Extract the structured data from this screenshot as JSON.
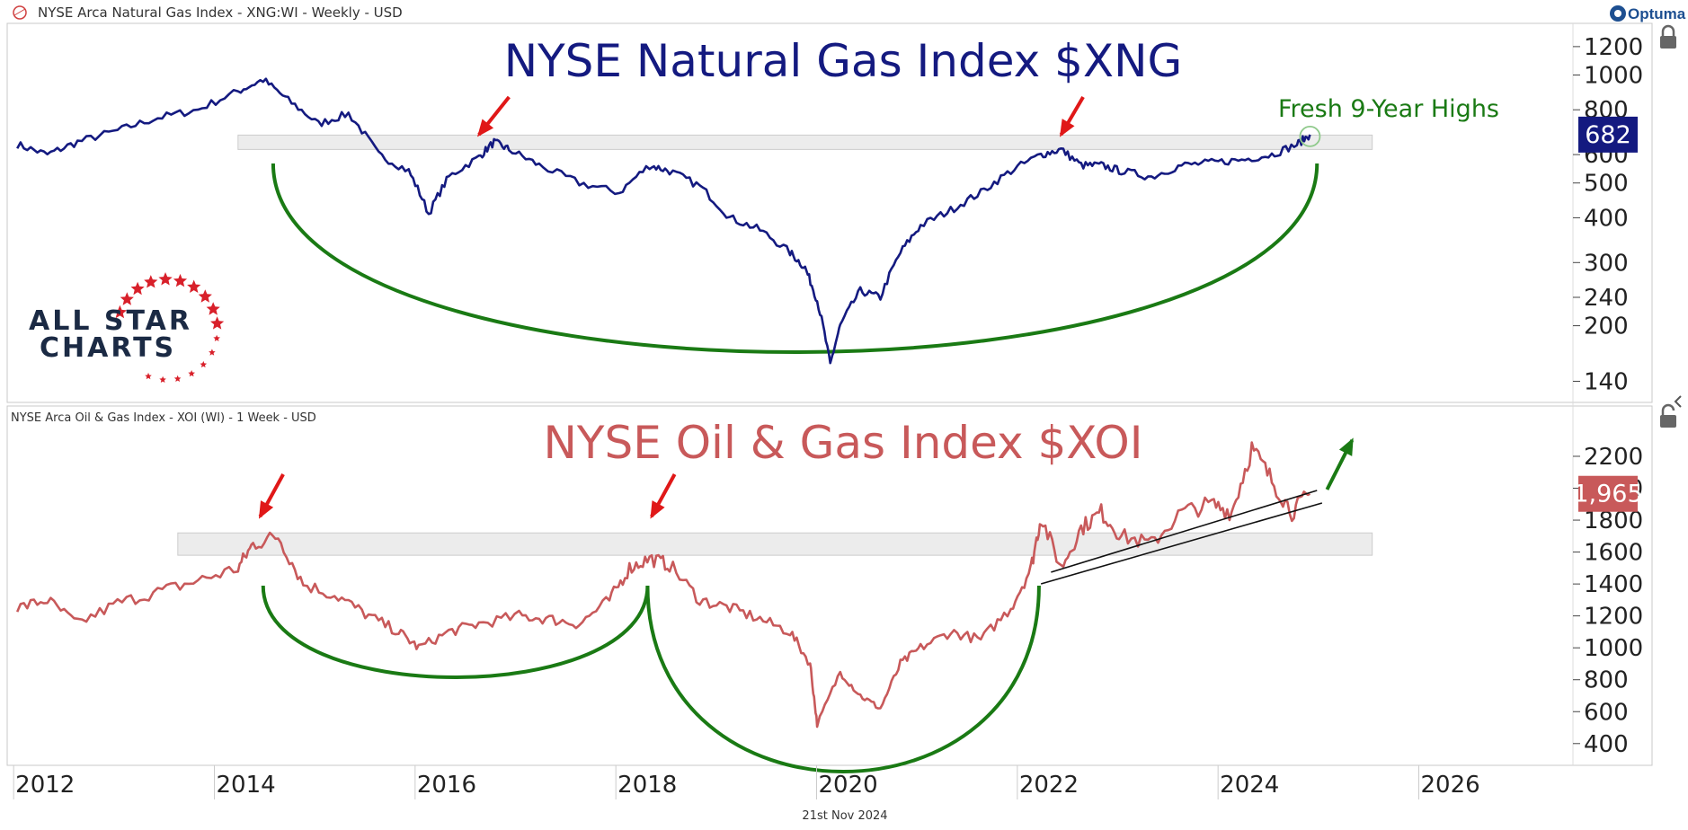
{
  "app": {
    "top_header": "NYSE Arca Natural Gas Index - XNG:WI - Weekly - USD",
    "brand": "Optuma",
    "footer_date": "21st Nov 2024",
    "logo_line1": "ALL STAR",
    "logo_line2": "CHARTS"
  },
  "colors": {
    "xng_line": "#141a80",
    "xoi_line": "#c8595a",
    "arc_green": "#1a7a14",
    "arrow_red": "#e01818",
    "arrow_green": "#1a7a14",
    "band_fill": "#e6e6e6",
    "xng_tag": "#141a80",
    "xoi_tag": "#c8595a",
    "star_red": "#d8202a"
  },
  "chart_data": [
    {
      "type": "line",
      "title": "NYSE Natural Gas Index $XNG",
      "header": "NYSE Arca Natural Gas Index - XNG:WI - Weekly - USD",
      "scale": "log",
      "ylim": [
        128,
        1300
      ],
      "yticks": [
        140,
        200,
        240,
        300,
        400,
        500,
        600,
        800,
        1000,
        1200
      ],
      "ytick_labels": [
        "140",
        "200",
        "240",
        "300",
        "400",
        "500",
        "600",
        "800",
        "1000",
        "1200"
      ],
      "last_value": 682,
      "last_value_label": "682",
      "annotation": "Fresh 9-Year Highs",
      "resistance_band": [
        620,
        680
      ],
      "series": [
        {
          "x": [
            2012.0,
            2012.3,
            2012.6,
            2013.0,
            2013.4,
            2013.8,
            2014.2,
            2014.45,
            2014.7,
            2015.0,
            2015.3,
            2015.6,
            2015.9,
            2016.1,
            2016.3,
            2016.6,
            2016.75,
            2016.9,
            2017.2,
            2017.6,
            2018.0,
            2018.3,
            2018.5,
            2018.8,
            2019.1,
            2019.4,
            2019.7,
            2019.85,
            2019.97,
            2020.1,
            2020.2,
            2020.4,
            2020.6,
            2020.8,
            2021.0,
            2021.3,
            2021.6,
            2021.9,
            2022.2,
            2022.4,
            2022.6,
            2022.8,
            2023.0,
            2023.3,
            2023.6,
            2023.9,
            2024.2,
            2024.5,
            2024.75,
            2024.88
          ],
          "values": [
            640,
            600,
            650,
            700,
            760,
            800,
            900,
            970,
            850,
            730,
            780,
            600,
            540,
            410,
            520,
            590,
            650,
            620,
            560,
            500,
            470,
            560,
            540,
            490,
            400,
            370,
            320,
            290,
            235,
            155,
            200,
            250,
            240,
            320,
            380,
            420,
            470,
            540,
            600,
            620,
            560,
            560,
            540,
            520,
            560,
            570,
            580,
            600,
            640,
            682
          ]
        }
      ]
    },
    {
      "type": "line",
      "title": "NYSE Oil & Gas Index $XOI",
      "header": "NYSE Arca Oil & Gas Index - XOI (WI) - 1 Week - USD",
      "scale": "linear",
      "ylim": [
        320,
        2380
      ],
      "yticks": [
        400,
        600,
        800,
        1000,
        1200,
        1400,
        1600,
        1800,
        2000,
        2200
      ],
      "ytick_labels": [
        "400",
        "600",
        "800",
        "1000",
        "1200",
        "1400",
        "1600",
        "1800",
        "2000",
        "2200"
      ],
      "last_value": 1965,
      "last_value_label": "1,965",
      "resistance_band": [
        1580,
        1720
      ],
      "series": [
        {
          "x": [
            2012.0,
            2012.3,
            2012.6,
            2013.0,
            2013.4,
            2013.8,
            2014.2,
            2014.35,
            2014.6,
            2014.85,
            2015.2,
            2015.5,
            2015.8,
            2016.0,
            2016.3,
            2016.6,
            2017.0,
            2017.3,
            2017.6,
            2017.9,
            2018.1,
            2018.3,
            2018.5,
            2018.8,
            2019.1,
            2019.4,
            2019.7,
            2019.9,
            2019.97,
            2020.2,
            2020.4,
            2020.6,
            2020.8,
            2021.0,
            2021.3,
            2021.6,
            2021.9,
            2022.1,
            2022.2,
            2022.4,
            2022.6,
            2022.8,
            2023.0,
            2023.3,
            2023.6,
            2023.9,
            2024.1,
            2024.3,
            2024.5,
            2024.7,
            2024.88
          ],
          "values": [
            1250,
            1300,
            1150,
            1280,
            1350,
            1420,
            1500,
            1650,
            1700,
            1400,
            1320,
            1200,
            1100,
            1000,
            1100,
            1150,
            1200,
            1180,
            1150,
            1300,
            1500,
            1560,
            1520,
            1300,
            1250,
            1180,
            1100,
            900,
            520,
            850,
            700,
            620,
            900,
            1000,
            1100,
            1050,
            1250,
            1500,
            1820,
            1500,
            1750,
            1850,
            1700,
            1650,
            1850,
            1900,
            1850,
            2250,
            2050,
            1850,
            1965
          ]
        }
      ]
    }
  ],
  "xaxis": {
    "range": [
      2011.9,
      2027.5
    ],
    "ticks": [
      2012,
      2014,
      2016,
      2018,
      2020,
      2022,
      2024,
      2026
    ],
    "tick_labels": [
      "2012",
      "2014",
      "2016",
      "2018",
      "2020",
      "2022",
      "2024",
      "2026"
    ]
  }
}
